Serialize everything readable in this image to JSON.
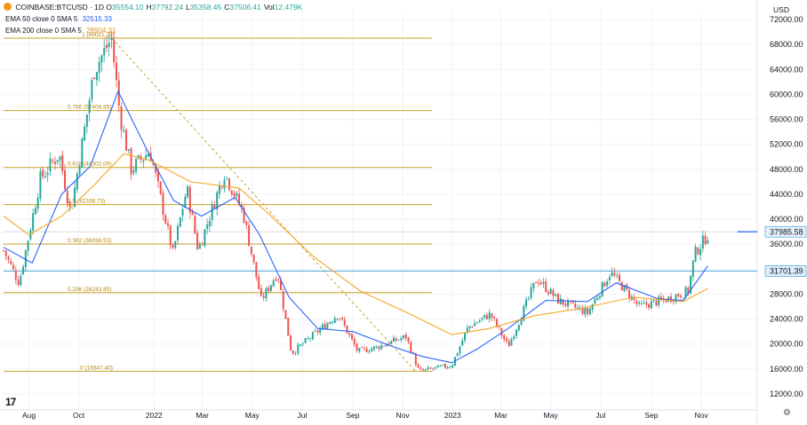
{
  "header": {
    "symbol": "COINBASE:BTCUSD · 1D",
    "ohlc": [
      {
        "label": "O",
        "value": "35554.10"
      },
      {
        "label": "H",
        "value": "37792.24"
      },
      {
        "label": "L",
        "value": "35358.45"
      },
      {
        "label": "C",
        "value": "37506.41"
      },
      {
        "label": "Vol",
        "value": "12.479K"
      }
    ],
    "currency": "USD"
  },
  "indicators": [
    {
      "name": "EMA 50 close 0 SMA 5",
      "value": "32515.33",
      "color": "#2962ff"
    },
    {
      "name": "EMA 200 close 0 SMA 5",
      "value": "28904.21",
      "color": "#f5a623"
    }
  ],
  "chart_data": {
    "type": "candlestick",
    "y_axis": {
      "ticks": [
        72000,
        68000,
        64000,
        60000,
        56000,
        52000,
        48000,
        44000,
        40000,
        36000,
        32000,
        28000,
        24000,
        20000,
        16000,
        12000
      ],
      "tick_labels": [
        "72000.00",
        "68000.00",
        "64000.00",
        "60000.00",
        "56000.00",
        "52000.00",
        "48000.00",
        "44000.00",
        "40000.00",
        "36000.00",
        "32000.00",
        "28000.00",
        "24000.00",
        "20000.00",
        "16000.00",
        "12000.00"
      ],
      "range": [
        12000,
        72000
      ]
    },
    "x_axis": {
      "range": [
        "2021-07-01",
        "2023-12-01"
      ],
      "ticks": [
        {
          "label": "Aug",
          "date": "2021-08-01"
        },
        {
          "label": "Oct",
          "date": "2021-10-01"
        },
        {
          "label": "2022",
          "date": "2022-01-01"
        },
        {
          "label": "Mar",
          "date": "2022-03-01"
        },
        {
          "label": "May",
          "date": "2022-05-01"
        },
        {
          "label": "Jul",
          "date": "2022-07-01"
        },
        {
          "label": "Sep",
          "date": "2022-09-01"
        },
        {
          "label": "Nov",
          "date": "2022-11-01"
        },
        {
          "label": "2023",
          "date": "2023-01-01"
        },
        {
          "label": "Mar",
          "date": "2023-03-01"
        },
        {
          "label": "May",
          "date": "2023-05-01"
        },
        {
          "label": "Jul",
          "date": "2023-07-01"
        },
        {
          "label": "Sep",
          "date": "2023-09-01"
        },
        {
          "label": "Nov",
          "date": "2023-11-01"
        }
      ]
    },
    "price_path": [
      [
        "2021-07-01",
        35000
      ],
      [
        "2021-07-20",
        29800
      ],
      [
        "2021-08-15",
        46500
      ],
      [
        "2021-09-07",
        50500
      ],
      [
        "2021-09-21",
        41000
      ],
      [
        "2021-10-20",
        64000
      ],
      [
        "2021-11-10",
        69000
      ],
      [
        "2021-11-20",
        57000
      ],
      [
        "2021-12-04",
        48000
      ],
      [
        "2021-12-27",
        51000
      ],
      [
        "2022-01-24",
        34500
      ],
      [
        "2022-02-10",
        45000
      ],
      [
        "2022-02-24",
        35000
      ],
      [
        "2022-03-28",
        47500
      ],
      [
        "2022-04-20",
        41000
      ],
      [
        "2022-05-12",
        27000
      ],
      [
        "2022-06-01",
        31500
      ],
      [
        "2022-06-18",
        18500
      ],
      [
        "2022-08-14",
        24800
      ],
      [
        "2022-09-07",
        18800
      ],
      [
        "2022-10-01",
        19500
      ],
      [
        "2022-11-05",
        21200
      ],
      [
        "2022-11-21",
        15600
      ],
      [
        "2022-12-31",
        16600
      ],
      [
        "2023-01-20",
        22700
      ],
      [
        "2023-02-16",
        24800
      ],
      [
        "2023-03-10",
        19600
      ],
      [
        "2023-04-14",
        30500
      ],
      [
        "2023-05-10",
        27000
      ],
      [
        "2023-06-15",
        25000
      ],
      [
        "2023-07-13",
        31500
      ],
      [
        "2023-08-17",
        26000
      ],
      [
        "2023-09-20",
        27200
      ],
      [
        "2023-10-16",
        28500
      ],
      [
        "2023-10-24",
        34500
      ],
      [
        "2023-11-09",
        37500
      ]
    ],
    "series": [
      {
        "name": "EMA 50 close 0 SMA 5",
        "color": "#2962ff",
        "points": [
          [
            "2021-07-01",
            35500
          ],
          [
            "2021-08-05",
            33000
          ],
          [
            "2021-09-10",
            44000
          ],
          [
            "2021-10-15",
            48500
          ],
          [
            "2021-11-18",
            60500
          ],
          [
            "2021-12-20",
            52000
          ],
          [
            "2022-01-25",
            43000
          ],
          [
            "2022-02-28",
            40500
          ],
          [
            "2022-04-10",
            43500
          ],
          [
            "2022-05-10",
            37500
          ],
          [
            "2022-06-15",
            27500
          ],
          [
            "2022-07-20",
            22500
          ],
          [
            "2022-09-01",
            22000
          ],
          [
            "2022-10-15",
            19800
          ],
          [
            "2022-11-25",
            18000
          ],
          [
            "2022-12-31",
            17000
          ],
          [
            "2023-01-31",
            19200
          ],
          [
            "2023-03-10",
            22500
          ],
          [
            "2023-04-25",
            27000
          ],
          [
            "2023-06-15",
            26800
          ],
          [
            "2023-07-20",
            29800
          ],
          [
            "2023-09-10",
            27200
          ],
          [
            "2023-10-10",
            27000
          ],
          [
            "2023-11-09",
            32515
          ]
        ]
      },
      {
        "name": "EMA 200 close 0 SMA 5",
        "color": "#f5a623",
        "points": [
          [
            "2021-07-01",
            40500
          ],
          [
            "2021-08-01",
            37500
          ],
          [
            "2021-09-10",
            40500
          ],
          [
            "2021-10-20",
            45500
          ],
          [
            "2021-11-25",
            50500
          ],
          [
            "2021-12-25",
            49500
          ],
          [
            "2022-02-15",
            46000
          ],
          [
            "2022-04-15",
            45000
          ],
          [
            "2022-05-20",
            41000
          ],
          [
            "2022-07-15",
            34000
          ],
          [
            "2022-09-10",
            28500
          ],
          [
            "2022-11-15",
            24500
          ],
          [
            "2022-12-31",
            21500
          ],
          [
            "2023-02-15",
            22500
          ],
          [
            "2023-04-10",
            24500
          ],
          [
            "2023-06-10",
            25800
          ],
          [
            "2023-08-10",
            27500
          ],
          [
            "2023-10-10",
            26800
          ],
          [
            "2023-11-09",
            28904
          ]
        ]
      }
    ],
    "fibonacci": {
      "color": "#c9a227",
      "levels": [
        {
          "label": "1 (69021.39)",
          "value": 69021.39
        },
        {
          "label": "0.786 (57409.85)",
          "value": 57409.85
        },
        {
          "label": "0.618 (48302.00)",
          "value": 48302.0
        },
        {
          "label": "0.5 (42338.73)",
          "value": 42338.73
        },
        {
          "label": "0.382 (36036.53)",
          "value": 36036.53
        },
        {
          "label": "0.236 (28243.85)",
          "value": 28243.85
        },
        {
          "label": "0 (15647.40)",
          "value": 15647.4
        }
      ],
      "range_dates": [
        "2021-11-10",
        "2022-11-21"
      ]
    },
    "horizontal_lines": [
      {
        "value": 37985.58,
        "label": "37985.58",
        "style": "dotted"
      },
      {
        "value": 31701.39,
        "label": "31701.39",
        "style": "solid"
      }
    ]
  },
  "icons": {
    "symbol": "bitcoin-icon",
    "logo": "tradingview-logo-icon",
    "settings": "settings-icon"
  },
  "logo_text": "17",
  "settings_glyph": "⚙"
}
